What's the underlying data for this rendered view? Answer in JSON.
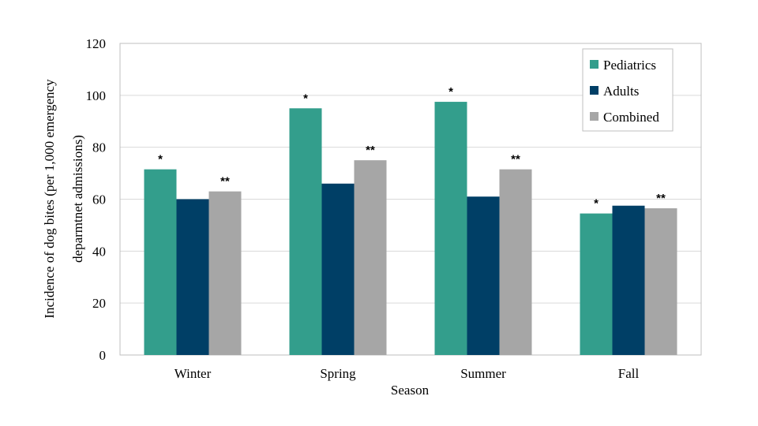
{
  "chart_data": {
    "type": "bar",
    "xlabel": "Season",
    "ylabel_lines": [
      "Incidence of dog bites (per 1,000 emergency",
      "deparmtnet admissions)"
    ],
    "categories": [
      "Winter",
      "Spring",
      "Summer",
      "Fall"
    ],
    "ylim": [
      0,
      120
    ],
    "yticks": [
      0,
      20,
      40,
      60,
      80,
      100,
      120
    ],
    "grid": true,
    "legend_position": "top-right",
    "series": [
      {
        "name": "Pediatrics",
        "color": "#339e8c",
        "values": [
          71.5,
          95,
          97.5,
          54.5
        ],
        "annotations": [
          "*",
          "*",
          "*",
          "*"
        ]
      },
      {
        "name": "Adults",
        "color": "#003f66",
        "values": [
          60,
          66,
          61,
          57.5
        ],
        "annotations": [
          "",
          "",
          "",
          ""
        ]
      },
      {
        "name": "Combined",
        "color": "#a6a6a6",
        "values": [
          63,
          75,
          71.5,
          56.5
        ],
        "annotations": [
          "**",
          "**",
          "**",
          "**"
        ]
      }
    ]
  }
}
